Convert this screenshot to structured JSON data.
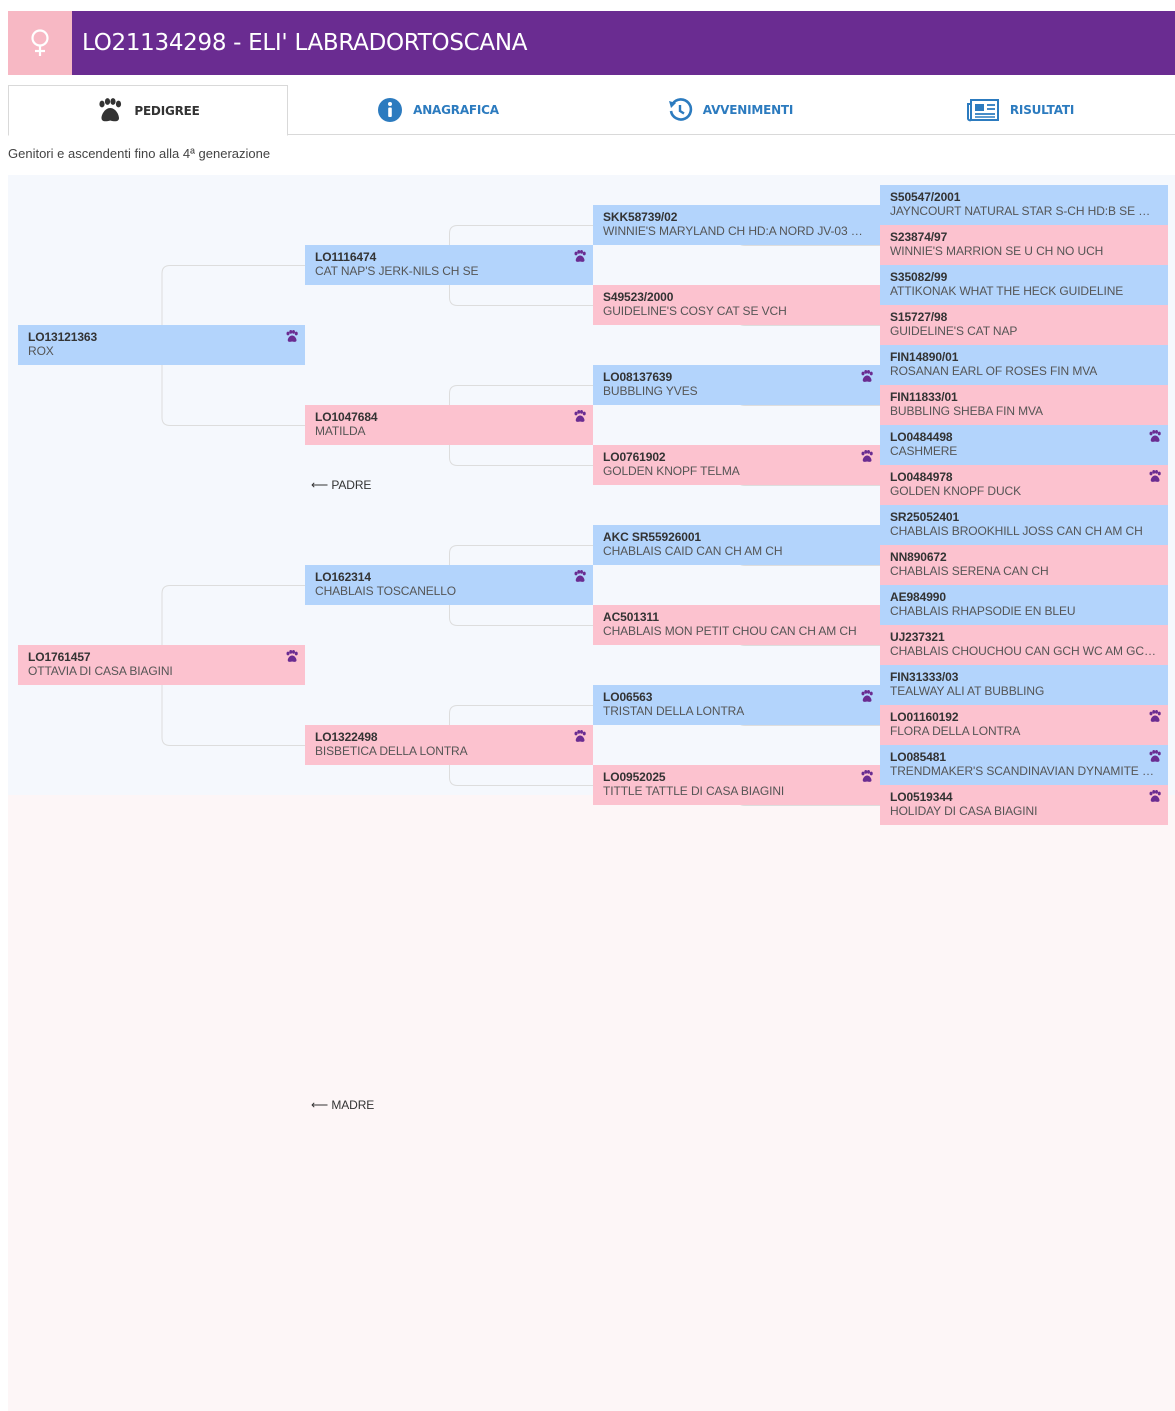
{
  "header": {
    "title": "LO21134298 - ELI' LABRADORTOSCANA",
    "sex_icon": "female-symbol-icon",
    "sex_color": "#f7b8c4",
    "bar_color": "#6a2c91"
  },
  "tabs": [
    {
      "label": "PEDIGREE",
      "icon": "paw-icon",
      "active": true
    },
    {
      "label": "ANAGRAFICA",
      "icon": "info-icon",
      "active": false
    },
    {
      "label": "AVVENIMENTI",
      "icon": "history-icon",
      "active": false
    },
    {
      "label": "RISULTATI",
      "icon": "newspaper-icon",
      "active": false
    }
  ],
  "subtitle": "Genitori e ascendenti fino alla 4ª generazione",
  "colors": {
    "male": "#b3d4fc",
    "female": "#fcc2cf",
    "paw": "#6a2c91"
  },
  "labels": {
    "father": "PADRE",
    "mother": "MADRE",
    "arrow": "⟵"
  },
  "pedigree": {
    "father": {
      "reg": "LO13121363",
      "name": "ROX",
      "paw": true
    },
    "mother": {
      "reg": "LO1761457",
      "name": "OTTAVIA DI CASA BIAGINI",
      "paw": true
    },
    "ff": {
      "reg": "LO1116474",
      "name": "CAT NAP'S JERK-NILS CH SE",
      "paw": true
    },
    "fm": {
      "reg": "LO1047684",
      "name": "MATILDA",
      "paw": true
    },
    "mf": {
      "reg": "LO162314",
      "name": "CHABLAIS TOSCANELLO",
      "paw": true
    },
    "mm": {
      "reg": "LO1322498",
      "name": "BISBETICA DELLA LONTRA",
      "paw": true
    },
    "fff": {
      "reg": "SKK58739/02",
      "name": "WINNIE'S MARYLAND CH HD:A NORD JV-03 SE …",
      "paw": false
    },
    "ffm": {
      "reg": "S49523/2000",
      "name": "GUIDELINE'S COSY CAT SE VCH",
      "paw": false
    },
    "fmf": {
      "reg": "LO08137639",
      "name": "BUBBLING YVES",
      "paw": true
    },
    "fmm": {
      "reg": "LO0761902",
      "name": "GOLDEN KNOPF TELMA",
      "paw": true
    },
    "mff": {
      "reg": "AKC SR55926001",
      "name": "CHABLAIS CAID CAN CH AM CH",
      "paw": false
    },
    "mfm": {
      "reg": "AC501311",
      "name": "CHABLAIS MON PETIT CHOU CAN CH AM CH",
      "paw": false
    },
    "mmf": {
      "reg": "LO06563",
      "name": "TRISTAN DELLA LONTRA",
      "paw": true
    },
    "mmm": {
      "reg": "LO0952025",
      "name": "TITTLE TATTLE DI CASA BIAGINI",
      "paw": true
    },
    "ffff": {
      "reg": "S50547/2001",
      "name": "JAYNCOURT NATURAL STAR S-CH HD:B SE U CH",
      "paw": false
    },
    "fffm": {
      "reg": "S23874/97",
      "name": "WINNIE'S MARRION SE U CH NO UCH",
      "paw": false
    },
    "ffmf": {
      "reg": "S35082/99",
      "name": "ATTIKONAK WHAT THE HECK GUIDELINE",
      "paw": false
    },
    "ffmm": {
      "reg": "S15727/98",
      "name": "GUIDELINE'S CAT NAP",
      "paw": false
    },
    "fmff": {
      "reg": "FIN14890/01",
      "name": "ROSANAN EARL OF ROSES FIN MVA",
      "paw": false
    },
    "fmfm": {
      "reg": "FIN11833/01",
      "name": "BUBBLING SHEBA FIN MVA",
      "paw": false
    },
    "fmmf": {
      "reg": "LO0484498",
      "name": "CASHMERE",
      "paw": true
    },
    "fmmm": {
      "reg": "LO0484978",
      "name": "GOLDEN KNOPF DUCK",
      "paw": true
    },
    "mfff": {
      "reg": "SR25052401",
      "name": "CHABLAIS BROOKHILL JOSS CAN CH AM CH",
      "paw": false
    },
    "mffm": {
      "reg": "NN890672",
      "name": "CHABLAIS SERENA CAN CH",
      "paw": false
    },
    "mfmf": {
      "reg": "AE984990",
      "name": "CHABLAIS RHAPSODIE EN BLEU",
      "paw": false
    },
    "mfmm": {
      "reg": "UJ237321",
      "name": "CHABLAIS CHOUCHOU CAN GCH WC AM GCH …",
      "paw": false
    },
    "mmff": {
      "reg": "FIN31333/03",
      "name": "TEALWAY ALI AT BUBBLING",
      "paw": false
    },
    "mmfm": {
      "reg": "LO01160192",
      "name": "FLORA DELLA LONTRA",
      "paw": true
    },
    "mmmf": {
      "reg": "LO085481",
      "name": "TRENDMAKER'S SCANDINAVIAN DYNAMITE C…",
      "paw": true
    },
    "mmmm": {
      "reg": "LO0519344",
      "name": "HOLIDAY DI CASA BIAGINI",
      "paw": true
    }
  }
}
